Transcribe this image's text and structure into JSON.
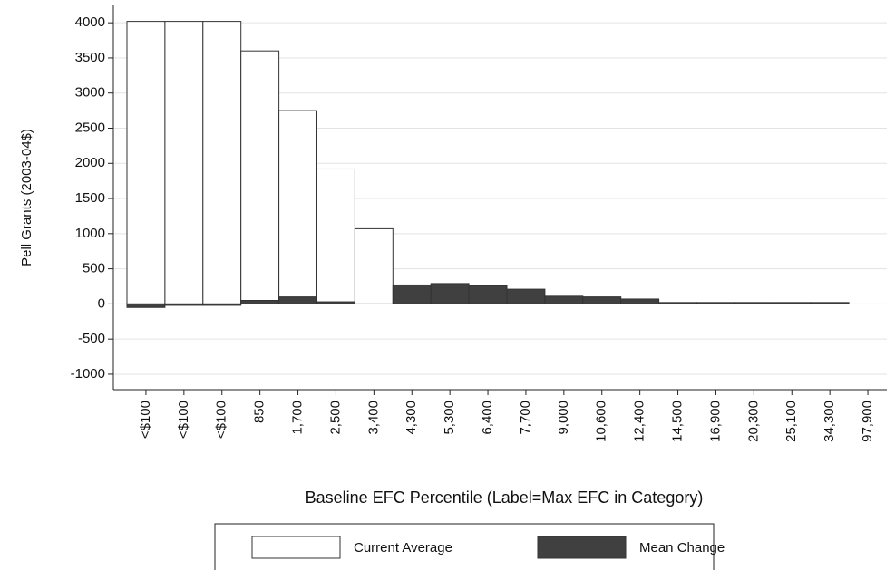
{
  "chart_data": {
    "type": "bar",
    "x_label": "Baseline EFC Percentile (Label=Max EFC in Category)",
    "y_label": "Pell Grants (2003-04$)",
    "categories": [
      "<$100",
      "<$100",
      "<$100",
      "850",
      "1,700",
      "2,500",
      "3,400",
      "4,300",
      "5,300",
      "6,400",
      "7,700",
      "9,000",
      "10,600",
      "12,400",
      "14,500",
      "16,900",
      "20,300",
      "25,100",
      "34,300",
      "97,900"
    ],
    "series": [
      {
        "name": "Current Average",
        "color": "#ffffff",
        "values": [
          4020,
          4020,
          4020,
          3600,
          2750,
          1920,
          1070,
          0,
          0,
          0,
          0,
          0,
          0,
          0,
          0,
          0,
          0,
          0,
          0,
          0
        ]
      },
      {
        "name": "Mean Change",
        "color": "#404040",
        "values": [
          -50,
          -20,
          -20,
          50,
          100,
          30,
          0,
          270,
          290,
          260,
          210,
          110,
          100,
          70,
          20,
          20,
          20,
          20,
          20,
          0
        ]
      }
    ],
    "ylim": [
      -1220,
      4260
    ],
    "yticks": [
      -1000,
      -500,
      0,
      500,
      1000,
      1500,
      2000,
      2500,
      3000,
      3500,
      4000
    ],
    "grid": true,
    "legend": "bottom"
  }
}
